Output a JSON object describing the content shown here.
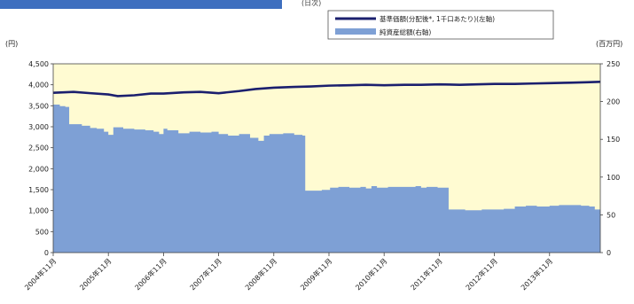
{
  "header_fragment": "(日次)",
  "chart_data": {
    "type": "area",
    "left_axis": {
      "unit": "(円)",
      "ticks": [
        "0",
        "500",
        "1,000",
        "1,500",
        "2,000",
        "2,500",
        "3,000",
        "3,500",
        "4,000",
        "4,500"
      ],
      "range": [
        0,
        4500
      ]
    },
    "right_axis": {
      "unit": "(百万円)",
      "ticks": [
        "0",
        "50",
        "100",
        "150",
        "200",
        "250"
      ],
      "range": [
        0,
        250
      ]
    },
    "x_axis": {
      "range": [
        2004.83,
        2014.75
      ],
      "ticks": [
        {
          "t": 2004.83,
          "label": "2004年11月"
        },
        {
          "t": 2005.83,
          "label": "2005年11月"
        },
        {
          "t": 2006.83,
          "label": "2006年11月"
        },
        {
          "t": 2007.83,
          "label": "2007年11月"
        },
        {
          "t": 2008.83,
          "label": "2008年11月"
        },
        {
          "t": 2009.83,
          "label": "2009年11月"
        },
        {
          "t": 2010.83,
          "label": "2010年11月"
        },
        {
          "t": 2011.83,
          "label": "2011年11月"
        },
        {
          "t": 2012.83,
          "label": "2012年11月"
        },
        {
          "t": 2013.83,
          "label": "2013年11月"
        }
      ]
    },
    "legend": {
      "placement": "top-right",
      "entries": [
        {
          "label": "基準価額(分配後*, 1千口あたり)(左軸)",
          "kind": "line"
        },
        {
          "label": "純資産総額(右軸)",
          "kind": "area"
        }
      ]
    },
    "colors": {
      "plot_bg": "#FFFBD2",
      "area": "#7EA0D5",
      "line": "#1B1F6E",
      "header_bar": "#3E6FBF"
    },
    "series": [
      {
        "name": "純資産総額(右軸)",
        "axis": "right",
        "kind": "area",
        "x": [
          2004.83,
          2004.95,
          2005.05,
          2005.12,
          2005.2,
          2005.35,
          2005.5,
          2005.62,
          2005.75,
          2005.83,
          2005.92,
          2006.1,
          2006.3,
          2006.5,
          2006.65,
          2006.75,
          2006.83,
          2006.9,
          2007.1,
          2007.3,
          2007.5,
          2007.7,
          2007.83,
          2008.0,
          2008.2,
          2008.4,
          2008.55,
          2008.65,
          2008.75,
          2009.0,
          2009.2,
          2009.35,
          2009.4,
          2009.5,
          2009.7,
          2009.85,
          2010.0,
          2010.2,
          2010.4,
          2010.5,
          2010.6,
          2010.7,
          2010.9,
          2011.2,
          2011.4,
          2011.5,
          2011.6,
          2011.8,
          2012.0,
          2012.3,
          2012.6,
          2012.83,
          2013.0,
          2013.2,
          2013.4,
          2013.6,
          2013.83,
          2014.0,
          2014.2,
          2014.4,
          2014.55,
          2014.65,
          2014.75
        ],
        "values": [
          196,
          194,
          193,
          170,
          170,
          168,
          165,
          164,
          160,
          156,
          166,
          164,
          163,
          162,
          160,
          157,
          164,
          162,
          158,
          160,
          159,
          160,
          157,
          155,
          157,
          152,
          148,
          155,
          157,
          158,
          156,
          155,
          82,
          82,
          83,
          86,
          87,
          86,
          87,
          85,
          88,
          86,
          87,
          87,
          88,
          86,
          87,
          86,
          57,
          56,
          57,
          57,
          58,
          61,
          62,
          61,
          62,
          63,
          63,
          62,
          61,
          57,
          56
        ]
      },
      {
        "name": "基準価額(分配後*, 1千口あたり)(左軸)",
        "axis": "left",
        "kind": "line",
        "x": [
          2004.83,
          2005.2,
          2005.5,
          2005.83,
          2006.0,
          2006.3,
          2006.6,
          2006.83,
          2007.2,
          2007.5,
          2007.83,
          2008.2,
          2008.5,
          2008.83,
          2009.2,
          2009.5,
          2009.83,
          2010.2,
          2010.5,
          2010.83,
          2011.2,
          2011.5,
          2011.83,
          2012.2,
          2012.5,
          2012.83,
          2013.2,
          2013.5,
          2013.83,
          2014.2,
          2014.5,
          2014.75
        ],
        "values": [
          3810,
          3830,
          3800,
          3770,
          3730,
          3750,
          3790,
          3790,
          3820,
          3830,
          3800,
          3850,
          3900,
          3930,
          3950,
          3960,
          3980,
          3990,
          4000,
          3990,
          4000,
          4000,
          4010,
          4000,
          4010,
          4020,
          4020,
          4030,
          4040,
          4050,
          4060,
          4070
        ]
      }
    ]
  }
}
